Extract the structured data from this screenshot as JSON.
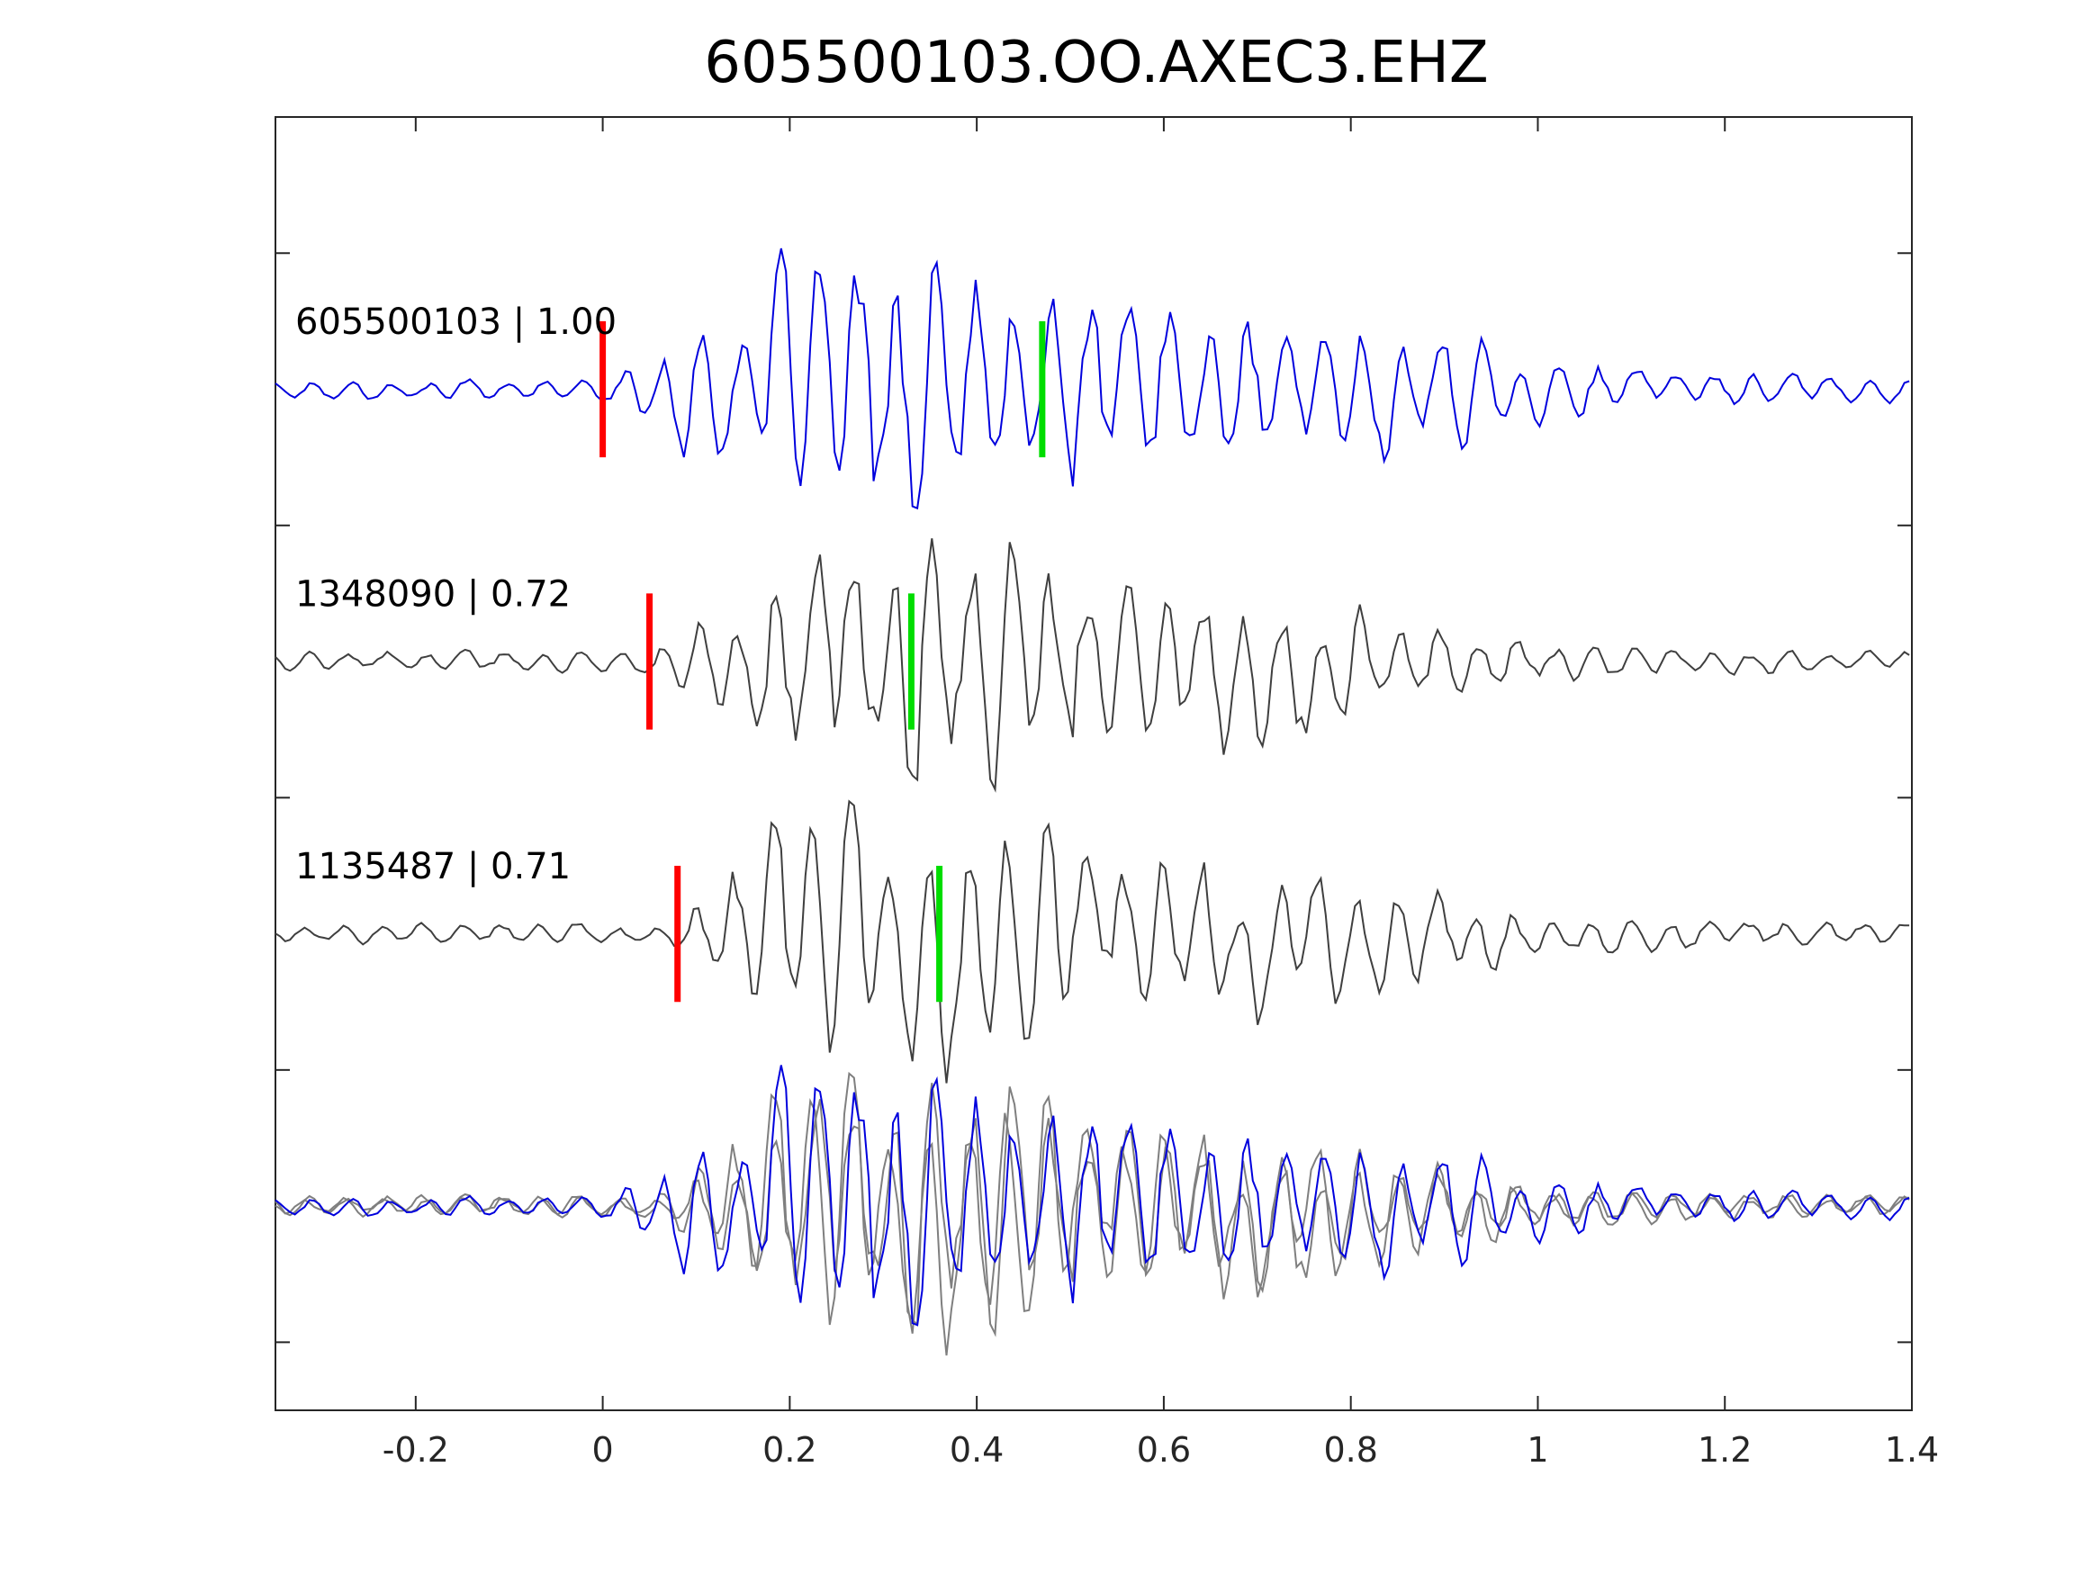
{
  "chart_data": {
    "type": "line",
    "title": "605500103.OO.AXEC3.EHZ",
    "xlabel": "",
    "ylabel": "",
    "xlim": [
      -0.35,
      1.4
    ],
    "xticks": [
      -0.2,
      0,
      0.2,
      0.4,
      0.6,
      0.8,
      1,
      1.2,
      1.4
    ],
    "xtick_labels": [
      "-0.2",
      "0",
      "0.2",
      "0.4",
      "0.6",
      "0.8",
      "1",
      "1.2",
      "1.4"
    ],
    "ylim": [
      0,
      4.75
    ],
    "yticks": [
      0.25,
      1.25,
      2.25,
      3.25,
      4.25
    ],
    "ytick_labels_visible": false,
    "grid": false,
    "colors": {
      "reference": "#0000dd",
      "neighbor": "#3f3f3f",
      "overlay_neighbor": "#7f7f7f",
      "p_pick": "#ff0000",
      "s_pick": "#00dd00",
      "axes": "#262626"
    },
    "traces": [
      {
        "label": "605500103 | 1.00",
        "event_id": "605500103",
        "correlation": "1.00",
        "baseline": 3.75,
        "role": "reference",
        "p_pick": 0.0,
        "s_pick": 0.47,
        "signal_start": 0.0,
        "signal_peak": 0.22,
        "coda_end": 0.95
      },
      {
        "label": "1348090 | 0.72",
        "event_id": "1348090",
        "correlation": "0.72",
        "baseline": 2.75,
        "role": "neighbor",
        "p_pick": 0.05,
        "s_pick": 0.33,
        "signal_start": 0.04,
        "signal_peak": 0.24,
        "coda_end": 0.85
      },
      {
        "label": "1135487 | 0.71",
        "event_id": "1135487",
        "correlation": "0.71",
        "baseline": 1.75,
        "role": "neighbor",
        "p_pick": 0.08,
        "s_pick": 0.36,
        "signal_start": 0.07,
        "signal_peak": 0.22,
        "coda_end": 0.9
      }
    ],
    "overlay": {
      "baseline": 0.75,
      "shows": [
        "605500103",
        "1348090",
        "1135487"
      ]
    }
  }
}
